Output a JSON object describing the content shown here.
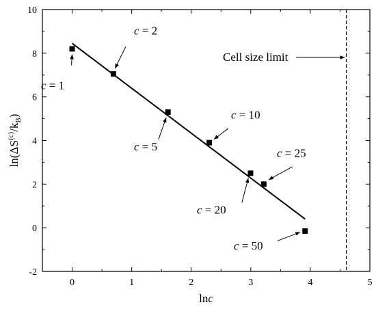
{
  "chart_data": {
    "type": "scatter",
    "xlabel": "ln",
    "xlabel_italic": "c",
    "ylabel": "ln(ΔS",
    "ylabel_sup": "(c)",
    "ylabel_mid": "/k",
    "ylabel_sub": "B",
    "ylabel_close": ")",
    "xlim": [
      -0.5,
      5
    ],
    "ylim": [
      -2,
      10
    ],
    "x_ticks": [
      "0",
      "1",
      "2",
      "3",
      "4",
      "5"
    ],
    "y_ticks": [
      "-2",
      "0",
      "2",
      "4",
      "6",
      "8",
      "10"
    ],
    "series": [
      {
        "marker": "square",
        "color": "#000000",
        "points": [
          {
            "c": 1,
            "x": 0.0,
            "y": 8.2
          },
          {
            "c": 2,
            "x": 0.693,
            "y": 7.05
          },
          {
            "c": 5,
            "x": 1.609,
            "y": 5.3
          },
          {
            "c": 10,
            "x": 2.303,
            "y": 3.9
          },
          {
            "c": 20,
            "x": 2.996,
            "y": 2.5
          },
          {
            "c": 25,
            "x": 3.219,
            "y": 2.0
          },
          {
            "c": 50,
            "x": 3.912,
            "y": -0.15
          }
        ]
      }
    ],
    "fit_line": {
      "x": [
        0.0,
        3.912
      ],
      "y": [
        8.45,
        0.4
      ],
      "color": "#000000"
    },
    "vline": {
      "x": 4.605,
      "style": "dashed",
      "label": "Cell size limit"
    },
    "annotations": [
      {
        "var": "c",
        "text": " = 1"
      },
      {
        "var": "c",
        "text": " = 2"
      },
      {
        "var": "c",
        "text": " = 5"
      },
      {
        "var": "c",
        "text": " = 10"
      },
      {
        "var": "c",
        "text": " = 20"
      },
      {
        "var": "c",
        "text": " = 25"
      },
      {
        "var": "c",
        "text": " = 50"
      }
    ]
  }
}
